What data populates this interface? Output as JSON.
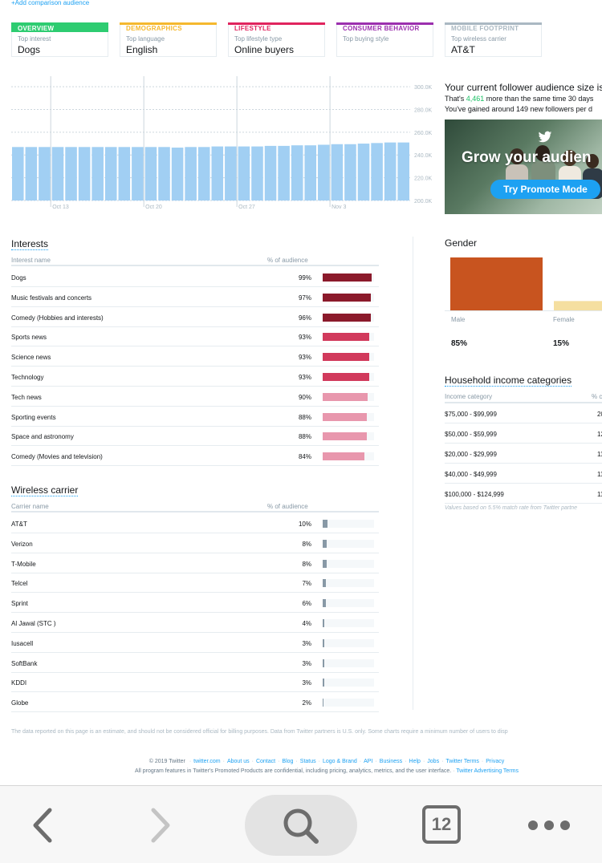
{
  "top_link": "+Add comparison audience",
  "cards": [
    {
      "head": "OVERVIEW",
      "sub": "Top interest",
      "value": "Dogs",
      "color": "#2ecc71",
      "filled": true
    },
    {
      "head": "DEMOGRAPHICS",
      "sub": "Top language",
      "value": "English",
      "color": "#f5b82e",
      "filled": false
    },
    {
      "head": "LIFESTYLE",
      "sub": "Top lifestyle type",
      "value": "Online buyers",
      "color": "#e0245e",
      "filled": false
    },
    {
      "head": "CONSUMER BEHAVIOR",
      "sub": "Top buying style",
      "value": "",
      "color": "#9b2fae",
      "filled": false
    },
    {
      "head": "MOBILE FOOTPRINT",
      "sub": "Top wireless carrier",
      "value": "AT&T",
      "color": "#aab8c2",
      "filled": false
    }
  ],
  "chart_data": {
    "type": "bar",
    "title": "",
    "xlabel": "",
    "ylabel": "",
    "ylim": [
      200000,
      305000
    ],
    "y_ticks": [
      "300.0K",
      "280.0K",
      "260.0K",
      "240.0K",
      "220.0K",
      "200.0K"
    ],
    "x_ticks": [
      "Oct 13",
      "Oct 20",
      "Oct 27",
      "Nov 3"
    ],
    "values": [
      247000,
      247000,
      247000,
      247000,
      247000,
      247000,
      247000,
      247000,
      247000,
      247000,
      247000,
      247000,
      246500,
      247000,
      247000,
      247500,
      247500,
      247500,
      247500,
      248000,
      248000,
      248500,
      248500,
      249000,
      249500,
      249500,
      250000,
      250500,
      251000,
      251000
    ],
    "bar_color": "#a1cff3"
  },
  "audience": {
    "title": "Your current follower audience size is",
    "line1_pre": "That's",
    "line1_num": "4,461",
    "line1_post": "more than the same time 30 days",
    "line2": "You've gained around 149 new followers per d"
  },
  "promo": {
    "title": "Grow your audien",
    "button": "Try Promote Mode"
  },
  "interests": {
    "title": "Interests",
    "col_name": "Interest name",
    "col_pct": "% of audience",
    "rows": [
      {
        "name": "Dogs",
        "pct": "99%",
        "value": 99,
        "color": "#8b1a2b"
      },
      {
        "name": "Music festivals and concerts",
        "pct": "97%",
        "value": 97,
        "color": "#8b1a2b"
      },
      {
        "name": "Comedy (Hobbies and interests)",
        "pct": "96%",
        "value": 96,
        "color": "#8b1a2b"
      },
      {
        "name": "Sports news",
        "pct": "93%",
        "value": 93,
        "color": "#d13a5c"
      },
      {
        "name": "Science news",
        "pct": "93%",
        "value": 93,
        "color": "#d13a5c"
      },
      {
        "name": "Technology",
        "pct": "93%",
        "value": 93,
        "color": "#d13a5c"
      },
      {
        "name": "Tech news",
        "pct": "90%",
        "value": 90,
        "color": "#e897ad"
      },
      {
        "name": "Sporting events",
        "pct": "88%",
        "value": 88,
        "color": "#e897ad"
      },
      {
        "name": "Space and astronomy",
        "pct": "88%",
        "value": 88,
        "color": "#e897ad"
      },
      {
        "name": "Comedy (Movies and television)",
        "pct": "84%",
        "value": 84,
        "color": "#e897ad"
      }
    ]
  },
  "wireless": {
    "title": "Wireless carrier",
    "col_name": "Carrier name",
    "col_pct": "% of audience",
    "rows": [
      {
        "name": "AT&T",
        "pct": "10%",
        "value": 10
      },
      {
        "name": "Verizon",
        "pct": "8%",
        "value": 8
      },
      {
        "name": "T-Mobile",
        "pct": "8%",
        "value": 8
      },
      {
        "name": "Telcel",
        "pct": "7%",
        "value": 7
      },
      {
        "name": "Sprint",
        "pct": "6%",
        "value": 6
      },
      {
        "name": "Al Jawal (STC )",
        "pct": "4%",
        "value": 4
      },
      {
        "name": "Iusacell",
        "pct": "3%",
        "value": 3
      },
      {
        "name": "SoftBank",
        "pct": "3%",
        "value": 3
      },
      {
        "name": "KDDI",
        "pct": "3%",
        "value": 3
      },
      {
        "name": "Globe",
        "pct": "2%",
        "value": 2
      }
    ],
    "bar_color": "#8899a6"
  },
  "gender": {
    "title": "Gender",
    "male_label": "Male",
    "male_pct": "85%",
    "male_value": 85,
    "male_color": "#c8541f",
    "female_label": "Female",
    "female_pct": "15%",
    "female_value": 15,
    "female_color": "#f5dfa0"
  },
  "income": {
    "title": "Household income categories",
    "col_name": "Income category",
    "col_pct": "% c",
    "rows": [
      {
        "name": "$75,000 - $99,999",
        "pct": "20"
      },
      {
        "name": "$50,000 - $59,999",
        "pct": "12"
      },
      {
        "name": "$20,000 - $29,999",
        "pct": "11"
      },
      {
        "name": "$40,000 - $49,999",
        "pct": "11"
      },
      {
        "name": "$100,000 - $124,999",
        "pct": "11"
      }
    ],
    "footnote": "Values based on 5.5% match rate from Twitter partne"
  },
  "disclaimer": "The data reported on this page is an estimate, and should not be considered official for billing purposes. Data from Twitter partners is U.S. only. Some charts require a minimum number of users to disp",
  "footer": {
    "copyright": "© 2019 Twitter",
    "links": [
      "twitter.com",
      "About us",
      "Contact",
      "Blog",
      "Status",
      "Logo & Brand",
      "API",
      "Business",
      "Help",
      "Jobs",
      "Twitter Terms",
      "Privacy"
    ],
    "line2": "All program features in Twitter's Promoted Products are confidential, including pricing, analytics, metrics, and the user interface.",
    "line2_link": "Twitter Advertising Terms"
  },
  "toolbar": {
    "tab_count": "12"
  }
}
